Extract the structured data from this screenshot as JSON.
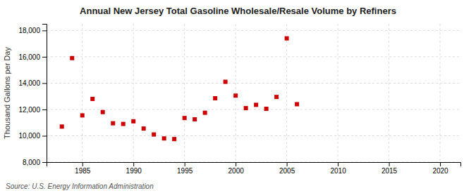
{
  "chart_data": {
    "type": "scatter",
    "title": "Annual New Jersey Total Gasoline Wholesale/Resale Volume by Refiners",
    "ylabel": "Thousand Gallons per Day",
    "source": "Source: U.S. Energy Information Administration",
    "x": [
      1983,
      1984,
      1985,
      1986,
      1987,
      1988,
      1989,
      1990,
      1991,
      1992,
      1993,
      1994,
      1995,
      1996,
      1997,
      1998,
      1999,
      2000,
      2001,
      2002,
      2003,
      2004,
      2005,
      2006
    ],
    "values": [
      10700,
      15900,
      11550,
      12800,
      11800,
      10950,
      10900,
      11100,
      10550,
      10100,
      9800,
      9750,
      11350,
      11250,
      11750,
      12850,
      14100,
      13050,
      12100,
      12350,
      12050,
      12950,
      17400,
      12400
    ],
    "color": "#cc0000",
    "marker": "square",
    "xlim": [
      1981.5,
      2022
    ],
    "ylim": [
      8000,
      18500
    ],
    "xticks": [
      1985,
      1990,
      1995,
      2000,
      2005,
      2010,
      2015,
      2020
    ],
    "yticks": [
      {
        "value": 8000,
        "label": "8,000"
      },
      {
        "value": 10000,
        "label": "10,000"
      },
      {
        "value": 12000,
        "label": "12,000"
      },
      {
        "value": 14000,
        "label": "14,000"
      },
      {
        "value": 16000,
        "label": "16,000"
      },
      {
        "value": 18000,
        "label": "18,000"
      }
    ],
    "grid": true
  }
}
